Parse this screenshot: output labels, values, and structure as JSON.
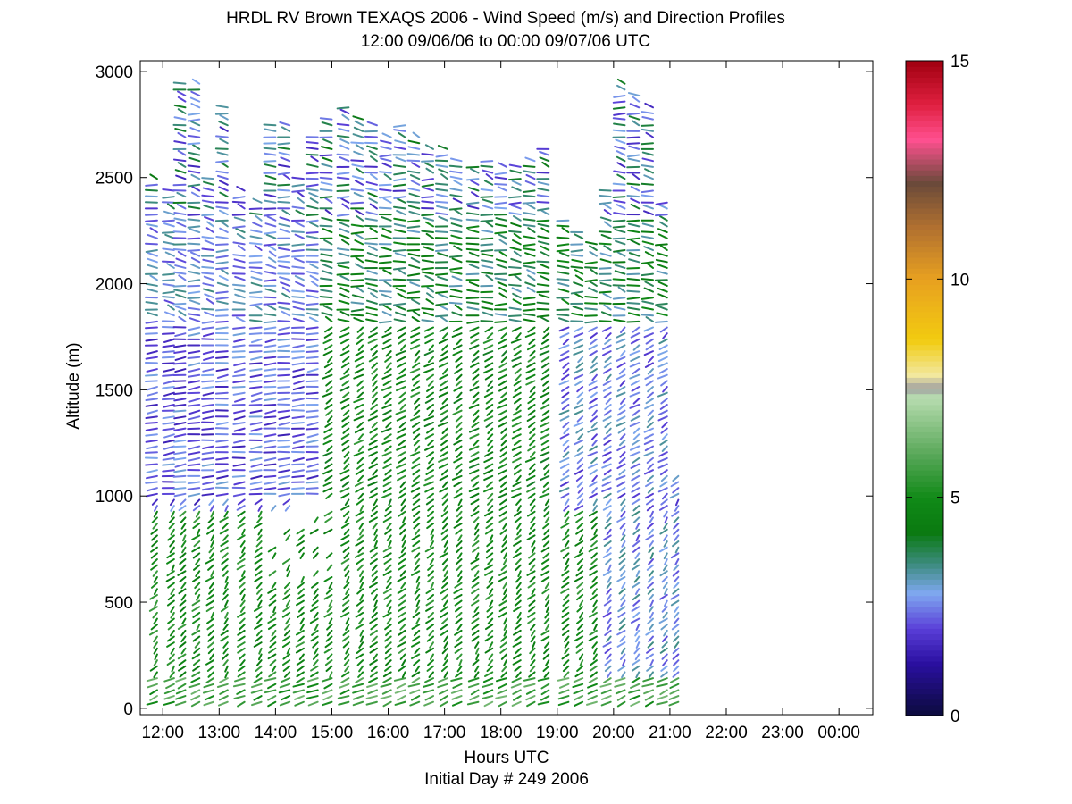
{
  "chart_data": {
    "type": "wind-barb-profile",
    "title": "HRDL RV Brown TEXAQS 2006 - Wind Speed (m/s) and Direction Profiles",
    "subtitle": "12:00 09/06/06 to 00:00 09/07/06  UTC",
    "xlabel": "Hours UTC",
    "xlabel2": "Initial Day # 249  2006",
    "ylabel": "Altitude (m)",
    "x_ticks": [
      "12:00",
      "13:00",
      "14:00",
      "15:00",
      "16:00",
      "17:00",
      "18:00",
      "19:00",
      "20:00",
      "21:00",
      "22:00",
      "23:00",
      "00:00"
    ],
    "x_tick_hours": [
      12,
      13,
      14,
      15,
      16,
      17,
      18,
      19,
      20,
      21,
      22,
      23,
      24
    ],
    "xlim_hours": [
      11.6,
      24.6
    ],
    "y_ticks": [
      0,
      500,
      1000,
      1500,
      2000,
      2500,
      3000
    ],
    "ylim": [
      -30,
      3050
    ],
    "colorbar": {
      "range": [
        0,
        15
      ],
      "ticks": [
        0,
        5,
        10,
        15
      ],
      "colors": [
        {
          "v": 0,
          "c": "#0b0b3c"
        },
        {
          "v": 1.2,
          "c": "#2a0fa0"
        },
        {
          "v": 2.0,
          "c": "#5a3fd8"
        },
        {
          "v": 2.8,
          "c": "#7fa8f0"
        },
        {
          "v": 3.5,
          "c": "#3a8a7a"
        },
        {
          "v": 4.2,
          "c": "#0a7a10"
        },
        {
          "v": 5.0,
          "c": "#118a18"
        },
        {
          "v": 6.0,
          "c": "#5aa85a"
        },
        {
          "v": 7.3,
          "c": "#b8ddb0"
        },
        {
          "v": 7.5,
          "c": "#a0a0a0"
        },
        {
          "v": 7.8,
          "c": "#f2e8a0"
        },
        {
          "v": 8.6,
          "c": "#f2cc10"
        },
        {
          "v": 10.0,
          "c": "#e8a020"
        },
        {
          "v": 11.2,
          "c": "#b07030"
        },
        {
          "v": 12.2,
          "c": "#6a4a3a"
        },
        {
          "v": 13.2,
          "c": "#ff5090"
        },
        {
          "v": 14.0,
          "c": "#e02040"
        },
        {
          "v": 15.0,
          "c": "#a00010"
        }
      ]
    },
    "profiles": [
      {
        "t": 11.9,
        "top": 2500,
        "bottom": 30
      },
      {
        "t": 12.2,
        "top": 2450,
        "bottom": 30
      },
      {
        "t": 12.4,
        "top": 2950,
        "bottom": 30
      },
      {
        "t": 12.65,
        "top": 2950,
        "bottom": 30
      },
      {
        "t": 12.9,
        "top": 2500,
        "bottom": 30
      },
      {
        "t": 13.15,
        "top": 2850,
        "bottom": 30
      },
      {
        "t": 13.45,
        "top": 2450,
        "bottom": 30
      },
      {
        "t": 13.75,
        "top": 2400,
        "bottom": 30
      },
      {
        "t": 14.0,
        "top": 2750,
        "bottom": 30
      },
      {
        "t": 14.25,
        "top": 2750,
        "bottom": 30
      },
      {
        "t": 14.5,
        "top": 2500,
        "bottom": 30
      },
      {
        "t": 14.75,
        "top": 2700,
        "bottom": 30
      },
      {
        "t": 15.0,
        "top": 2800,
        "bottom": 30
      },
      {
        "t": 15.3,
        "top": 2850,
        "bottom": 30
      },
      {
        "t": 15.55,
        "top": 2800,
        "bottom": 30
      },
      {
        "t": 15.8,
        "top": 2750,
        "bottom": 30
      },
      {
        "t": 16.05,
        "top": 2700,
        "bottom": 30
      },
      {
        "t": 16.3,
        "top": 2750,
        "bottom": 30
      },
      {
        "t": 16.55,
        "top": 2700,
        "bottom": 30
      },
      {
        "t": 16.8,
        "top": 2650,
        "bottom": 30
      },
      {
        "t": 17.05,
        "top": 2650,
        "bottom": 30
      },
      {
        "t": 17.3,
        "top": 2600,
        "bottom": 30
      },
      {
        "t": 17.6,
        "top": 2550,
        "bottom": 30
      },
      {
        "t": 17.85,
        "top": 2600,
        "bottom": 30
      },
      {
        "t": 18.1,
        "top": 2550,
        "bottom": 30
      },
      {
        "t": 18.35,
        "top": 2550,
        "bottom": 30
      },
      {
        "t": 18.6,
        "top": 2600,
        "bottom": 30
      },
      {
        "t": 18.85,
        "top": 2650,
        "bottom": 30
      },
      {
        "t": 19.2,
        "top": 2300,
        "bottom": 30
      },
      {
        "t": 19.45,
        "top": 2250,
        "bottom": 30
      },
      {
        "t": 19.7,
        "top": 2200,
        "bottom": 30
      },
      {
        "t": 19.95,
        "top": 2450,
        "bottom": 30
      },
      {
        "t": 20.2,
        "top": 2950,
        "bottom": 30
      },
      {
        "t": 20.45,
        "top": 2900,
        "bottom": 30
      },
      {
        "t": 20.7,
        "top": 2850,
        "bottom": 30
      },
      {
        "t": 20.95,
        "top": 2400,
        "bottom": 30
      },
      {
        "t": 21.15,
        "top": 1100,
        "bottom": 30
      }
    ]
  }
}
